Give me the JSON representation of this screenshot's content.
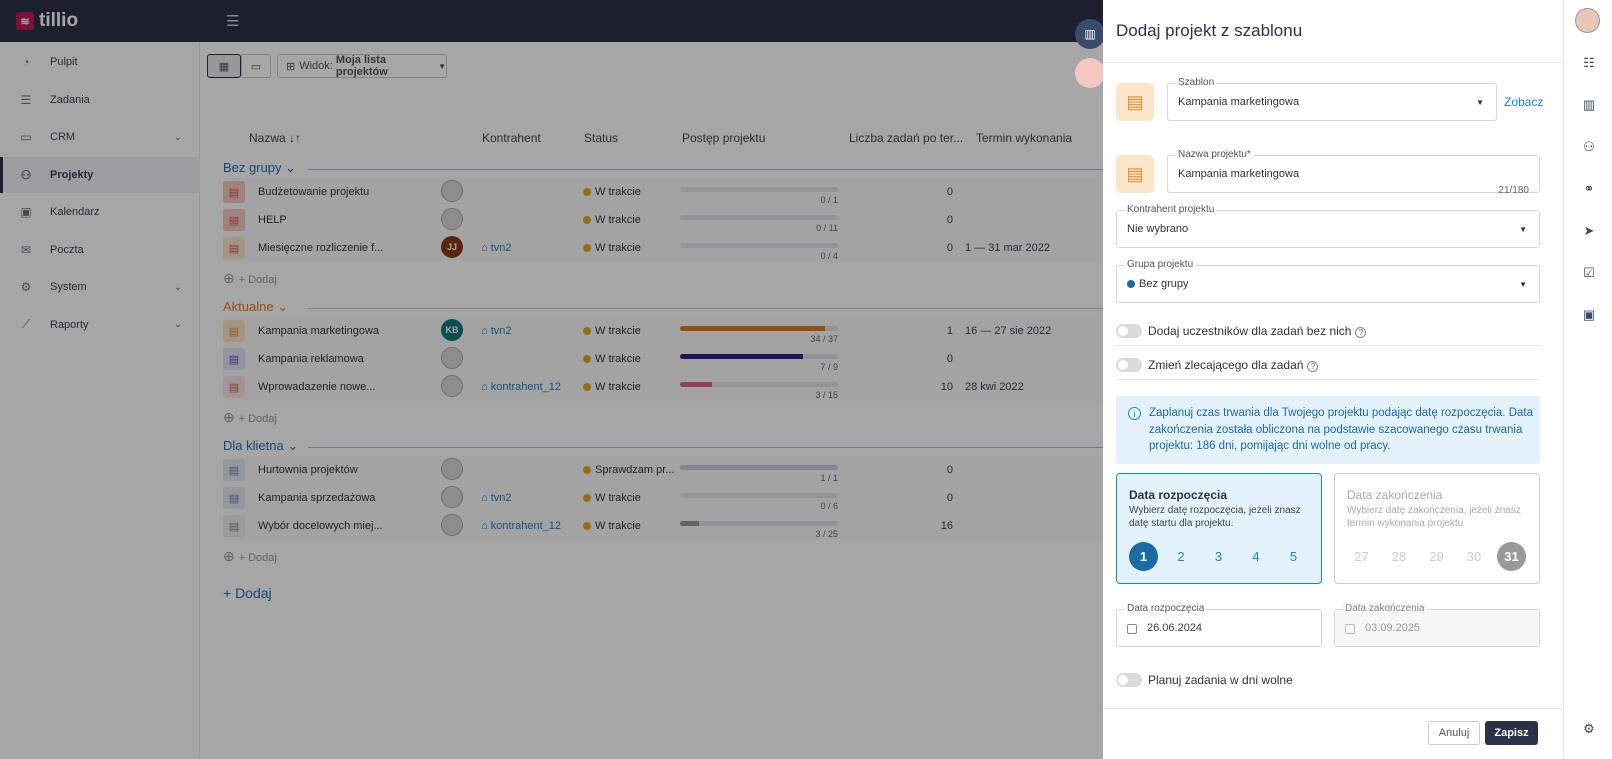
{
  "app": {
    "name": "tillio",
    "brand_color": "#c2185b",
    "topbar_color": "#2a3148"
  },
  "sidebar": {
    "items": [
      {
        "label": "Pulpit",
        "icon": "dashboard-icon"
      },
      {
        "label": "Zadania",
        "icon": "tasks-icon"
      },
      {
        "label": "CRM",
        "icon": "crm-icon",
        "expandable": true
      },
      {
        "label": "Projekty",
        "icon": "projects-icon",
        "active": true
      },
      {
        "label": "Kalendarz",
        "icon": "calendar-icon"
      },
      {
        "label": "Poczta",
        "icon": "mail-icon"
      },
      {
        "label": "System",
        "icon": "gear-icon",
        "expandable": true
      },
      {
        "label": "Raporty",
        "icon": "chart-icon",
        "expandable": true
      }
    ]
  },
  "toolbar": {
    "view_prefix": "Widok:",
    "view_name": "Moja lista projektów"
  },
  "table": {
    "headers": {
      "name": "Nazwa ↓↑",
      "client": "Kontrahent",
      "status": "Status",
      "progress": "Postęp projektu",
      "tasks": "Liczba zadań po ter...",
      "deadline": "Termin wykonania"
    },
    "add_label": "+ Dodaj",
    "add_group": "+ Dodaj",
    "groups": [
      {
        "name": "Bez grupy",
        "color": "#2a6ab4",
        "rows": [
          {
            "name": "Budżetowanie projektu",
            "client": "",
            "status": "W trakcie",
            "progress": "0 / 1",
            "tasks": "0",
            "deadline": "",
            "icon_bg": "#f4c7c1",
            "icon_color": "#d9534f",
            "fill_color": "#e3e4ea",
            "fill": 0.0
          },
          {
            "name": "HELP",
            "client": "",
            "status": "W trakcie",
            "progress": "0 / 11",
            "tasks": "0",
            "deadline": "",
            "icon_bg": "#f4c7c1",
            "icon_color": "#d9534f",
            "fill_color": "#e3e4ea",
            "fill": 0.0
          },
          {
            "name": "Miesięczne rozliczenie f...",
            "client": "tvn2",
            "status": "W trakcie",
            "progress": "0 / 4",
            "tasks": "0",
            "deadline": "1 — 31 mar 2022",
            "icon_bg": "#fbe6cc",
            "icon_color": "#d9534f",
            "avatar": "JJ",
            "avatar_bg": "#8b3a1a",
            "fill_color": "#e3e4ea",
            "fill": 0.0
          }
        ]
      },
      {
        "name": "Aktualne",
        "color": "#e07b2a",
        "rows": [
          {
            "name": "Kampania marketingowa",
            "client": "tvn2",
            "status": "W trakcie",
            "progress": "34 / 37",
            "tasks": "1",
            "deadline": "16 — 27 sie 2022",
            "icon_bg": "#fbe6cc",
            "icon_color": "#e08a2a",
            "avatar": "KB",
            "avatar_bg": "#0f7a7a",
            "fill_color": "#e07b1a",
            "fill": 0.92
          },
          {
            "name": "Kampania reklamowa",
            "client": "",
            "status": "W trakcie",
            "progress": "7 / 9",
            "tasks": "0",
            "deadline": "",
            "icon_bg": "#e4e2f5",
            "icon_color": "#5a4ab0",
            "fill_color": "#3a1a8a",
            "fill": 0.78
          },
          {
            "name": "Wprowadazenie nowe...",
            "client": "kontrahent_12",
            "status": "W trakcie",
            "progress": "3 / 15",
            "tasks": "10",
            "deadline": "28 kwi 2022",
            "icon_bg": "#fbe3e6",
            "icon_color": "#d9534f",
            "fill_color": "#e85f8a",
            "fill": 0.2
          }
        ]
      },
      {
        "name": "Dla klietna",
        "color": "#2a6ab4",
        "rows": [
          {
            "name": "Hurtownia projektów",
            "client": "",
            "status": "Sprawdzam pr...",
            "progress": "1 / 1",
            "tasks": "0",
            "deadline": "",
            "icon_bg": "#e4e8f0",
            "icon_color": "#6a7ab0",
            "fill_color": "#c9cde2",
            "fill": 1.0
          },
          {
            "name": "Kampania sprzedażowa",
            "client": "tvn2",
            "status": "W trakcie",
            "progress": "0 / 6",
            "tasks": "0",
            "deadline": "",
            "icon_bg": "#e4e8f0",
            "icon_color": "#6a7ab0",
            "fill_color": "#e3e4ea",
            "fill": 0.0
          },
          {
            "name": "Wybór docelowych miej...",
            "client": "kontrahent_12",
            "status": "W trakcie",
            "progress": "3 / 25",
            "tasks": "16",
            "deadline": "",
            "icon_bg": "#eeeeee",
            "icon_color": "#888",
            "fill_color": "#999",
            "fill": 0.12
          }
        ]
      }
    ]
  },
  "drawer": {
    "title": "Dodaj projekt z szablonu",
    "template": {
      "label": "Szablon",
      "value": "Kampania marketingowa",
      "link": "Zobacz"
    },
    "project_name": {
      "label": "Nazwa projektu*",
      "value": "Kampania marketingowa",
      "counter": "21/180"
    },
    "client": {
      "label": "Kontrahent projektu",
      "value": "Nie wybrano"
    },
    "group": {
      "label": "Grupa projektu",
      "value": "Bez grupy"
    },
    "toggle_participants": "Dodaj uczestników dla zadań bez nich",
    "toggle_assigner": "Zmień zlecającego dla zadań",
    "info": "Zaplanuj czas trwania dla Twojego projektu podając datę rozpoczęcia. Data zakończenia została obliczona na podstawie szacowanego czasu trwania projektu: 186 dni, pomijając dni wolne od pracy.",
    "start_card": {
      "title": "Data rozpoczęcia",
      "desc": "Wybierz datę rozpoczęcia, jeżeli znasz datę startu dla projektu.",
      "days": [
        "1",
        "2",
        "3",
        "4",
        "5"
      ]
    },
    "end_card": {
      "title": "Data zakończenia",
      "desc": "Wybierz datę zakończenia, jeżeli znasz termin wykonania projektu",
      "days": [
        "27",
        "28",
        "29",
        "30",
        "31"
      ]
    },
    "start_date": {
      "label": "Data rozpoczęcia",
      "value": "26.06.2024"
    },
    "end_date": {
      "label": "Data zakończenia",
      "value": "03.09.2025"
    },
    "toggle_weekends": "Planuj zadania w dni wolne",
    "cancel": "Anuluj",
    "save": "Zapisz"
  },
  "rail": {
    "icons": [
      "tasks-list-icon",
      "buildings-icon",
      "people-icon",
      "handshake-icon",
      "send-icon",
      "chat-check-icon",
      "calendar-icon",
      "settings-lightbulb-icon"
    ]
  }
}
